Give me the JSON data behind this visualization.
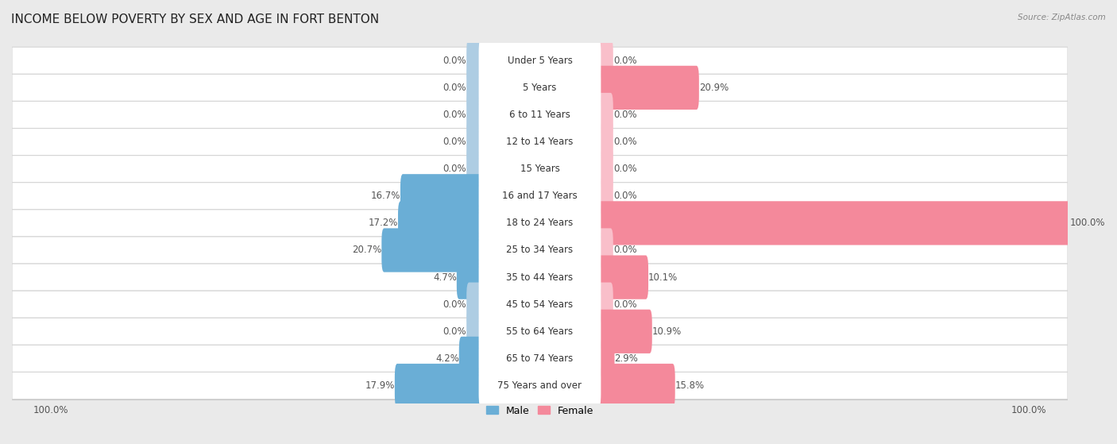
{
  "title": "INCOME BELOW POVERTY BY SEX AND AGE IN FORT BENTON",
  "source": "Source: ZipAtlas.com",
  "categories": [
    "Under 5 Years",
    "5 Years",
    "6 to 11 Years",
    "12 to 14 Years",
    "15 Years",
    "16 and 17 Years",
    "18 to 24 Years",
    "25 to 34 Years",
    "35 to 44 Years",
    "45 to 54 Years",
    "55 to 64 Years",
    "65 to 74 Years",
    "75 Years and over"
  ],
  "male": [
    0.0,
    0.0,
    0.0,
    0.0,
    0.0,
    16.7,
    17.2,
    20.7,
    4.7,
    0.0,
    0.0,
    4.2,
    17.9
  ],
  "female": [
    0.0,
    20.9,
    0.0,
    0.0,
    0.0,
    0.0,
    100.0,
    0.0,
    10.1,
    0.0,
    10.9,
    2.9,
    15.8
  ],
  "male_color": "#6aaed6",
  "female_color": "#f4899b",
  "male_color_light": "#aecde3",
  "female_color_light": "#f9bfca",
  "background_color": "#eaeaea",
  "row_bg_color": "#f5f5f5",
  "legend_male": "Male",
  "legend_female": "Female",
  "max_val": 100,
  "title_fontsize": 11,
  "label_fontsize": 8.5,
  "category_fontsize": 8.5,
  "axis_label_fontsize": 8.5
}
